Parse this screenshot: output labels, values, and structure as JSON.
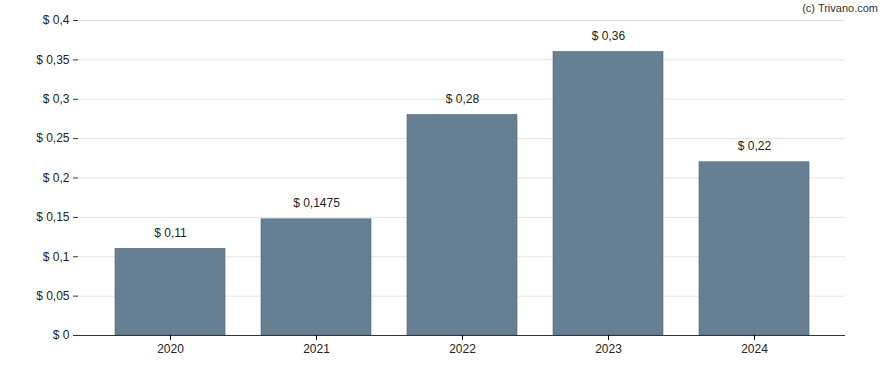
{
  "chart_data": {
    "type": "bar",
    "annotations": [
      "(c) Trivano.com"
    ],
    "categories": [
      "2020",
      "2021",
      "2022",
      "2023",
      "2024"
    ],
    "values": [
      0.11,
      0.1475,
      0.28,
      0.36,
      0.22
    ],
    "value_labels": [
      "$ 0,11",
      "$ 0,1475",
      "$ 0,28",
      "$ 0,36",
      "$ 0,22"
    ],
    "data_labels": true,
    "color": "#667f93",
    "ylim": [
      0,
      0.4
    ],
    "yticks": [
      {
        "value": 0,
        "label": "$ 0"
      },
      {
        "value": 0.05,
        "label": "$ 0,05"
      },
      {
        "value": 0.1,
        "label": "$ 0,1"
      },
      {
        "value": 0.15,
        "label": "$ 0,15"
      },
      {
        "value": 0.2,
        "label": "$ 0,2"
      },
      {
        "value": 0.25,
        "label": "$ 0,25"
      },
      {
        "value": 0.3,
        "label": "$ 0,3"
      },
      {
        "value": 0.35,
        "label": "$ 0,35"
      },
      {
        "value": 0.4,
        "label": "$ 0,4"
      }
    ],
    "grid": true
  }
}
